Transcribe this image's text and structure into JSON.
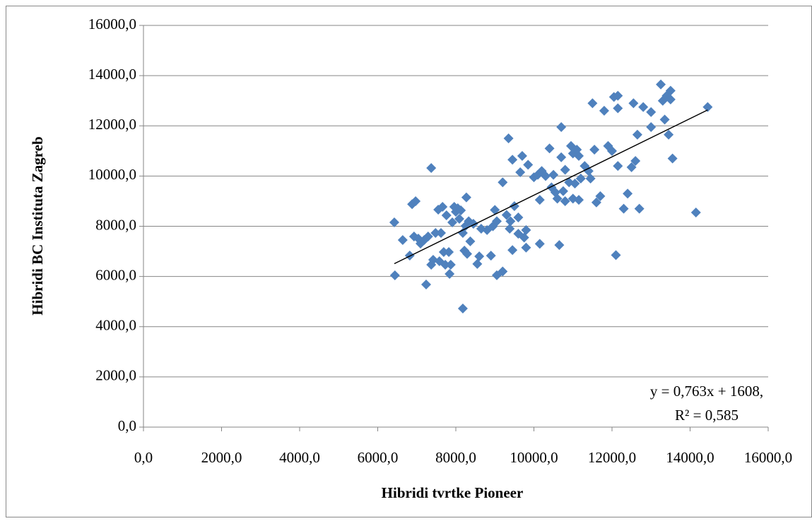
{
  "chart_data": {
    "type": "scatter",
    "x_label": "Hibridi tvrtke Pioneer",
    "y_label": "Hibridi BC Instituta  Zagreb",
    "annotations": [
      "y = 0,763x + 1608,",
      "R² = 0,585"
    ],
    "xlim": [
      0,
      16000
    ],
    "ylim": [
      0,
      16000
    ],
    "xticks": [
      {
        "value": 0,
        "label": "0,0"
      },
      {
        "value": 2000,
        "label": "2000,0"
      },
      {
        "value": 4000,
        "label": "4000,0"
      },
      {
        "value": 6000,
        "label": "6000,0"
      },
      {
        "value": 8000,
        "label": "8000,0"
      },
      {
        "value": 10000,
        "label": "10000,0"
      },
      {
        "value": 12000,
        "label": "12000,0"
      },
      {
        "value": 14000,
        "label": "14000,0"
      },
      {
        "value": 16000,
        "label": "16000,0"
      }
    ],
    "yticks": [
      {
        "value": 0,
        "label": "0,0"
      },
      {
        "value": 2000,
        "label": "2000,0"
      },
      {
        "value": 4000,
        "label": "4000,0"
      },
      {
        "value": 6000,
        "label": "6000,0"
      },
      {
        "value": 8000,
        "label": "8000,0"
      },
      {
        "value": 10000,
        "label": "10000,0"
      },
      {
        "value": 12000,
        "label": "12000,0"
      },
      {
        "value": 14000,
        "label": "14000,0"
      },
      {
        "value": 16000,
        "label": "16000,0"
      }
    ],
    "grid": true,
    "color": "#4f81bd",
    "trendline": {
      "color": "#000000",
      "x": [
        6425,
        14450
      ],
      "y": [
        6510,
        12633
      ]
    },
    "x": [
      6425,
      6440,
      6640,
      6820,
      6880,
      6930,
      6970,
      7040,
      7095,
      7190,
      7240,
      7290,
      7370,
      7370,
      7420,
      7480,
      7550,
      7580,
      7620,
      7660,
      7690,
      7730,
      7760,
      7820,
      7840,
      7870,
      7910,
      7960,
      8000,
      8050,
      8090,
      8130,
      8180,
      8180,
      8220,
      8250,
      8270,
      8290,
      8330,
      8370,
      8450,
      8550,
      8600,
      8650,
      8800,
      8900,
      8950,
      9000,
      9050,
      9050,
      9200,
      9200,
      9300,
      9350,
      9380,
      9400,
      9450,
      9450,
      9500,
      9600,
      9600,
      9650,
      9700,
      9750,
      9800,
      9800,
      9850,
      10000,
      10100,
      10150,
      10150,
      10200,
      10300,
      10400,
      10450,
      10500,
      10550,
      10600,
      10650,
      10700,
      10700,
      10750,
      10800,
      10800,
      10900,
      10950,
      11000,
      11000,
      11050,
      11100,
      11150,
      11150,
      11200,
      11300,
      11400,
      11450,
      11500,
      11550,
      11600,
      11700,
      11800,
      11900,
      12000,
      12050,
      12100,
      12150,
      12150,
      12150,
      12300,
      12400,
      12500,
      12550,
      12600,
      12650,
      12700,
      12800,
      13000,
      13000,
      13250,
      13300,
      13350,
      13400,
      13450,
      13500,
      13500,
      13550,
      14150,
      14450
    ],
    "values": [
      8155,
      6046,
      7452,
      6833,
      8880,
      7593,
      9000,
      7508,
      7312,
      7452,
      5680,
      7593,
      10320,
      6468,
      6665,
      7733,
      8661,
      6608,
      7733,
      8774,
      6974,
      6468,
      8436,
      6974,
      6102,
      6468,
      8155,
      8774,
      8577,
      8718,
      8296,
      8633,
      7733,
      4724,
      7030,
      8015,
      9150,
      6900,
      8200,
      7400,
      8100,
      6500,
      6800,
      7900,
      7850,
      6830,
      8000,
      8650,
      8200,
      6050,
      6200,
      9750,
      8450,
      11500,
      7900,
      8200,
      10650,
      7050,
      8800,
      7700,
      8350,
      10150,
      10800,
      7550,
      7850,
      7150,
      10450,
      9950,
      10050,
      9050,
      7300,
      10200,
      10000,
      11100,
      9550,
      10050,
      9350,
      9100,
      7250,
      11950,
      10750,
      9400,
      10250,
      9000,
      9750,
      11200,
      9100,
      10900,
      9700,
      11050,
      9050,
      10800,
      9900,
      10400,
      10200,
      9900,
      12900,
      11050,
      8950,
      9200,
      12600,
      11200,
      11000,
      13150,
      6850,
      13200,
      12700,
      10400,
      8700,
      9300,
      10350,
      12900,
      10600,
      11650,
      8700,
      12750,
      12550,
      11950,
      13650,
      13000,
      12250,
      13200,
      11650,
      13400,
      13050,
      10700,
      8550,
      12750
    ]
  }
}
